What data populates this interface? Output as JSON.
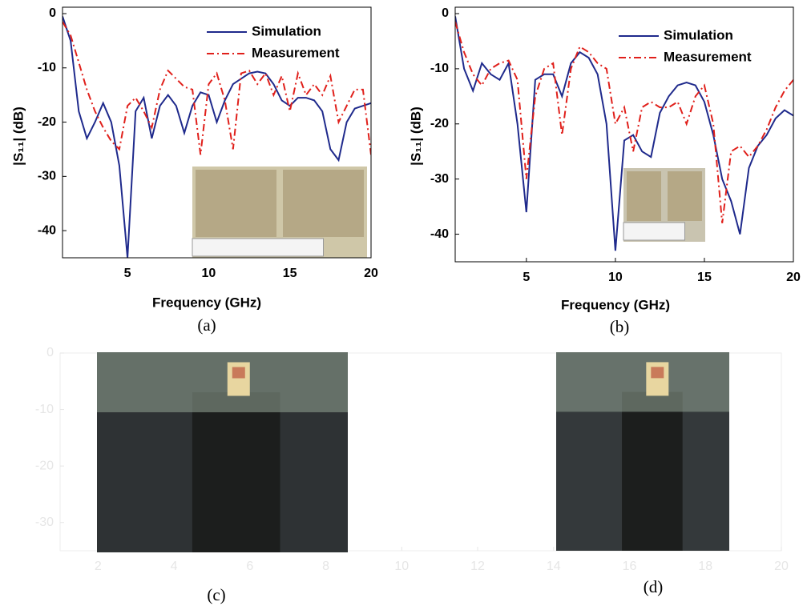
{
  "chart_data": [
    {
      "type": "line",
      "caption": "(a)",
      "xlabel": "Frequency (GHz)",
      "ylabel": "|S₁₁| (dB)",
      "xlim": [
        1,
        20
      ],
      "ylim": [
        -45,
        0
      ],
      "xticks": [
        5,
        10,
        15,
        20
      ],
      "yticks": [
        0,
        -10,
        -20,
        -30,
        -40
      ],
      "x": [
        1,
        1.5,
        2,
        2.5,
        3,
        3.5,
        4,
        4.5,
        5,
        5.5,
        6,
        6.5,
        7,
        7.5,
        8,
        8.5,
        9,
        9.5,
        10,
        10.5,
        11,
        11.5,
        12,
        12.5,
        13,
        13.5,
        14,
        14.5,
        15,
        15.5,
        16,
        16.5,
        17,
        17.5,
        18,
        18.5,
        19,
        19.5,
        20
      ],
      "series": [
        {
          "name": "Simulation",
          "color": "#1f2a8c",
          "style": "solid",
          "values": [
            -0.5,
            -5,
            -18,
            -23,
            -20,
            -16.5,
            -20,
            -28,
            -45,
            -18,
            -15.5,
            -23,
            -17,
            -15,
            -17,
            -22,
            -17,
            -14.5,
            -15,
            -20,
            -16,
            -13,
            -12,
            -11,
            -10.7,
            -11,
            -13,
            -16,
            -17,
            -15.5,
            -15.5,
            -16,
            -18,
            -25,
            -27,
            -20,
            -17.5,
            -17,
            -16.5
          ]
        },
        {
          "name": "Measurement",
          "color": "#e0201b",
          "style": "dashdot",
          "values": [
            -1.5,
            -4,
            -9,
            -14,
            -18,
            -21,
            -23.5,
            -25,
            -17,
            -15.5,
            -18,
            -21,
            -14,
            -10.5,
            -12,
            -13.5,
            -14,
            -26,
            -13,
            -11,
            -16,
            -25,
            -11,
            -10.5,
            -13,
            -11,
            -15,
            -11.5,
            -18,
            -11,
            -15,
            -13,
            -15,
            -11.5,
            -20,
            -17,
            -14,
            -14,
            -26
          ]
        }
      ]
    },
    {
      "type": "line",
      "caption": "(b)",
      "xlabel": "Frequency (GHz)",
      "ylabel": "|S₁₁| (dB)",
      "xlim": [
        1,
        20
      ],
      "ylim": [
        -45,
        0
      ],
      "xticks": [
        5,
        10,
        15,
        20
      ],
      "yticks": [
        0,
        -10,
        -20,
        -30,
        -40
      ],
      "x": [
        1,
        1.5,
        2,
        2.5,
        3,
        3.5,
        4,
        4.5,
        5,
        5.5,
        6,
        6.5,
        7,
        7.5,
        8,
        8.5,
        9,
        9.5,
        10,
        10.5,
        11,
        11.5,
        12,
        12.5,
        13,
        13.5,
        14,
        14.5,
        15,
        15.5,
        16,
        16.5,
        17,
        17.5,
        18,
        18.5,
        19,
        19.5,
        20
      ],
      "series": [
        {
          "name": "Simulation",
          "color": "#1f2a8c",
          "style": "solid",
          "values": [
            -0.5,
            -10,
            -14,
            -9,
            -11,
            -12,
            -9,
            -20,
            -36,
            -12,
            -11,
            -11,
            -15,
            -9,
            -7,
            -8,
            -11,
            -20,
            -43,
            -23,
            -22,
            -25,
            -26,
            -18,
            -15,
            -13,
            -12.5,
            -13,
            -16,
            -22,
            -30,
            -34,
            -40,
            -28,
            -24,
            -22,
            -19,
            -17.5,
            -18.5
          ]
        },
        {
          "name": "Measurement",
          "color": "#e0201b",
          "style": "dashdot",
          "values": [
            -1.5,
            -7,
            -11,
            -13,
            -10,
            -9,
            -8.5,
            -12,
            -30,
            -15,
            -10,
            -9,
            -22,
            -10,
            -6,
            -7,
            -9,
            -10,
            -20,
            -17,
            -25,
            -17,
            -16,
            -17,
            -17,
            -16,
            -20,
            -15,
            -13,
            -20,
            -38,
            -25,
            -24,
            -26,
            -24,
            -21,
            -17,
            -14,
            -12
          ]
        }
      ]
    },
    {
      "type": "line",
      "captions": [
        "(c)",
        "(d)"
      ],
      "xlim": [
        1,
        20
      ],
      "ylim": [
        -35,
        0
      ],
      "xticks": [
        2,
        4,
        6,
        8,
        10,
        12,
        14,
        16,
        18,
        20
      ],
      "yticks": [
        0,
        -10,
        -20,
        -30
      ]
    }
  ]
}
